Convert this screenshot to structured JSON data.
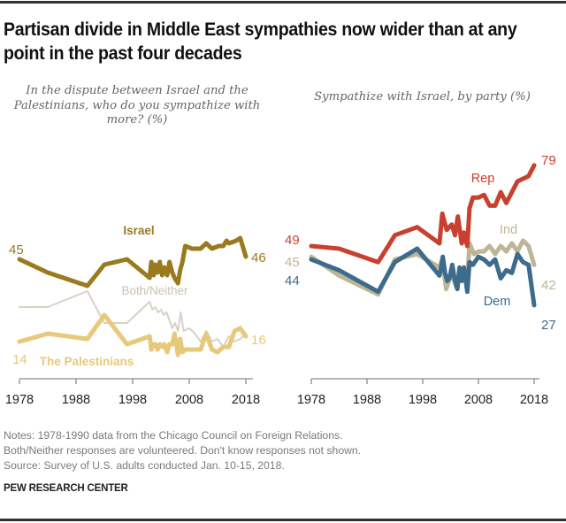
{
  "title": "Partisan divide in Middle East sympathies now wider than at any point in the past four decades",
  "notes": [
    "Notes: 1978-1990 data from the Chicago Council on Foreign Relations.",
    "Both/Neither responses are volunteered. Don't know responses not shown.",
    "Source: Survey of U.S. adults conducted Jan. 10-15, 2018."
  ],
  "source_org": "PEW RESEARCH CENTER",
  "chart_data": [
    {
      "type": "line",
      "subtitle": "In the dispute between Israel and the Palestinians, who do you sympathize with more? (%)",
      "xlabel": "",
      "ylabel": "",
      "xlim": [
        1978,
        2019
      ],
      "ylim": [
        0,
        70
      ],
      "x_ticks": [
        1978,
        1988,
        1998,
        2008,
        2018
      ],
      "grid": false,
      "series": [
        {
          "name": "Israel",
          "label": "Israel",
          "color": "#9a7a1e",
          "start_label": "45",
          "end_label": "46",
          "x": [
            1978,
            1983,
            1990,
            1993,
            1997,
            2001,
            2001.3,
            2001.7,
            2002,
            2002.4,
            2002.8,
            2003.2,
            2003.6,
            2004.1,
            2004.5,
            2005,
            2005.4,
            2006,
            2006.4,
            2006.8,
            2007.3,
            2008.5,
            2010,
            2011,
            2012,
            2013.2,
            2014,
            2014.6,
            2015,
            2016.3,
            2017,
            2018
          ],
          "values": [
            45,
            40,
            35,
            43,
            45,
            38,
            44,
            39,
            43,
            40,
            44,
            39,
            42,
            39,
            44,
            40,
            38,
            36,
            41,
            44,
            50,
            49,
            49,
            51,
            49,
            50,
            50,
            52,
            51,
            52,
            53,
            46
          ]
        },
        {
          "name": "Both/Neither",
          "label": "Both/Neither",
          "color": "#d8d2c3",
          "x": [
            1978,
            1983,
            1990,
            1993,
            1997,
            2001,
            2001.5,
            2002,
            2002.5,
            2003,
            2003.5,
            2004,
            2004.5,
            2005,
            2005.5,
            2006,
            2006.5,
            2007,
            2008,
            2009,
            2010,
            2011,
            2012,
            2013,
            2014,
            2015,
            2016,
            2017,
            2018
          ],
          "values": [
            27,
            27,
            33,
            21,
            21,
            29,
            26,
            27,
            25,
            26,
            24,
            25,
            22,
            19,
            21,
            18,
            25,
            18,
            19,
            17,
            14,
            18,
            14,
            15,
            12,
            16,
            14,
            15,
            17
          ]
        },
        {
          "name": "The Palestinians",
          "label": "The Palestinians",
          "color": "#e8c87a",
          "start_label": "14",
          "end_label": "16",
          "x": [
            1978,
            1983,
            1990,
            1993,
            1997,
            2001,
            2001.3,
            2001.7,
            2002,
            2002.4,
            2002.8,
            2003.2,
            2003.6,
            2004.1,
            2004.5,
            2005,
            2005.4,
            2006,
            2006.4,
            2006.8,
            2007.3,
            2008,
            2009,
            2010,
            2011,
            2012,
            2013,
            2014,
            2015,
            2016,
            2017,
            2018
          ],
          "values": [
            14,
            17,
            15,
            24,
            13,
            16,
            11,
            13,
            13,
            11,
            13,
            12,
            13,
            10,
            13,
            13,
            17,
            9,
            15,
            10,
            11,
            11,
            11,
            11,
            17,
            11,
            10,
            12,
            12,
            18,
            19,
            16
          ]
        }
      ]
    },
    {
      "type": "line",
      "subtitle": "Sympathize with Israel, by party (%)",
      "xlabel": "",
      "ylabel": "",
      "xlim": [
        1978,
        2019
      ],
      "ylim": [
        0,
        90
      ],
      "x_ticks": [
        1978,
        1988,
        1998,
        2008,
        2018
      ],
      "grid": false,
      "series": [
        {
          "name": "Rep",
          "label": "Rep",
          "color": "#c8402f",
          "start_label": "49",
          "end_label": "79",
          "x": [
            1978,
            1983,
            1990,
            1993,
            1997,
            2001,
            2001.5,
            2002.3,
            2003.2,
            2003.8,
            2004.3,
            2005,
            2005.4,
            2006,
            2006.4,
            2007,
            2008,
            2009,
            2010,
            2011,
            2012,
            2013,
            2014,
            2015,
            2016,
            2017,
            2018
          ],
          "values": [
            49,
            48,
            43,
            53,
            56,
            50,
            61,
            55,
            57,
            53,
            60,
            50,
            54,
            49,
            63,
            67,
            67,
            68,
            64,
            64,
            69,
            65,
            69,
            73,
            74,
            75,
            79
          ]
        },
        {
          "name": "Ind",
          "label": "Ind",
          "color": "#bdb596",
          "end_label": "42",
          "start_label": "45",
          "x": [
            1978,
            1983,
            1990,
            1993,
            1997,
            2001,
            2001.5,
            2002.2,
            2002.7,
            2003.3,
            2004,
            2004.6,
            2005,
            2005.4,
            2006,
            2006.4,
            2007.2,
            2008,
            2009,
            2010,
            2011,
            2012,
            2013,
            2014,
            2015,
            2016,
            2017,
            2018
          ],
          "values": [
            45,
            38,
            31,
            44,
            46,
            41,
            44,
            33,
            36,
            38,
            34,
            39,
            37,
            41,
            36,
            50,
            46,
            47,
            47,
            49,
            46,
            49,
            47,
            50,
            47,
            51,
            49,
            42
          ]
        },
        {
          "name": "Dem",
          "label": "Dem",
          "color": "#3d6b8c",
          "start_label": "44",
          "end_label": "27",
          "x": [
            1978,
            1983,
            1990,
            1993,
            1997,
            2001,
            2001.3,
            2001.6,
            2002,
            2002.4,
            2002.8,
            2003.3,
            2003.7,
            2004.2,
            2004.6,
            2005,
            2005.4,
            2006,
            2006.4,
            2007,
            2008,
            2009,
            2010,
            2011,
            2012,
            2013,
            2014,
            2015,
            2016,
            2017,
            2018
          ],
          "values": [
            44,
            40,
            32,
            43,
            48,
            38,
            41,
            45,
            39,
            36,
            37,
            42,
            37,
            33,
            41,
            36,
            41,
            32,
            43,
            42,
            45,
            44,
            42,
            44,
            37,
            40,
            39,
            46,
            43,
            42,
            27
          ]
        }
      ]
    }
  ]
}
